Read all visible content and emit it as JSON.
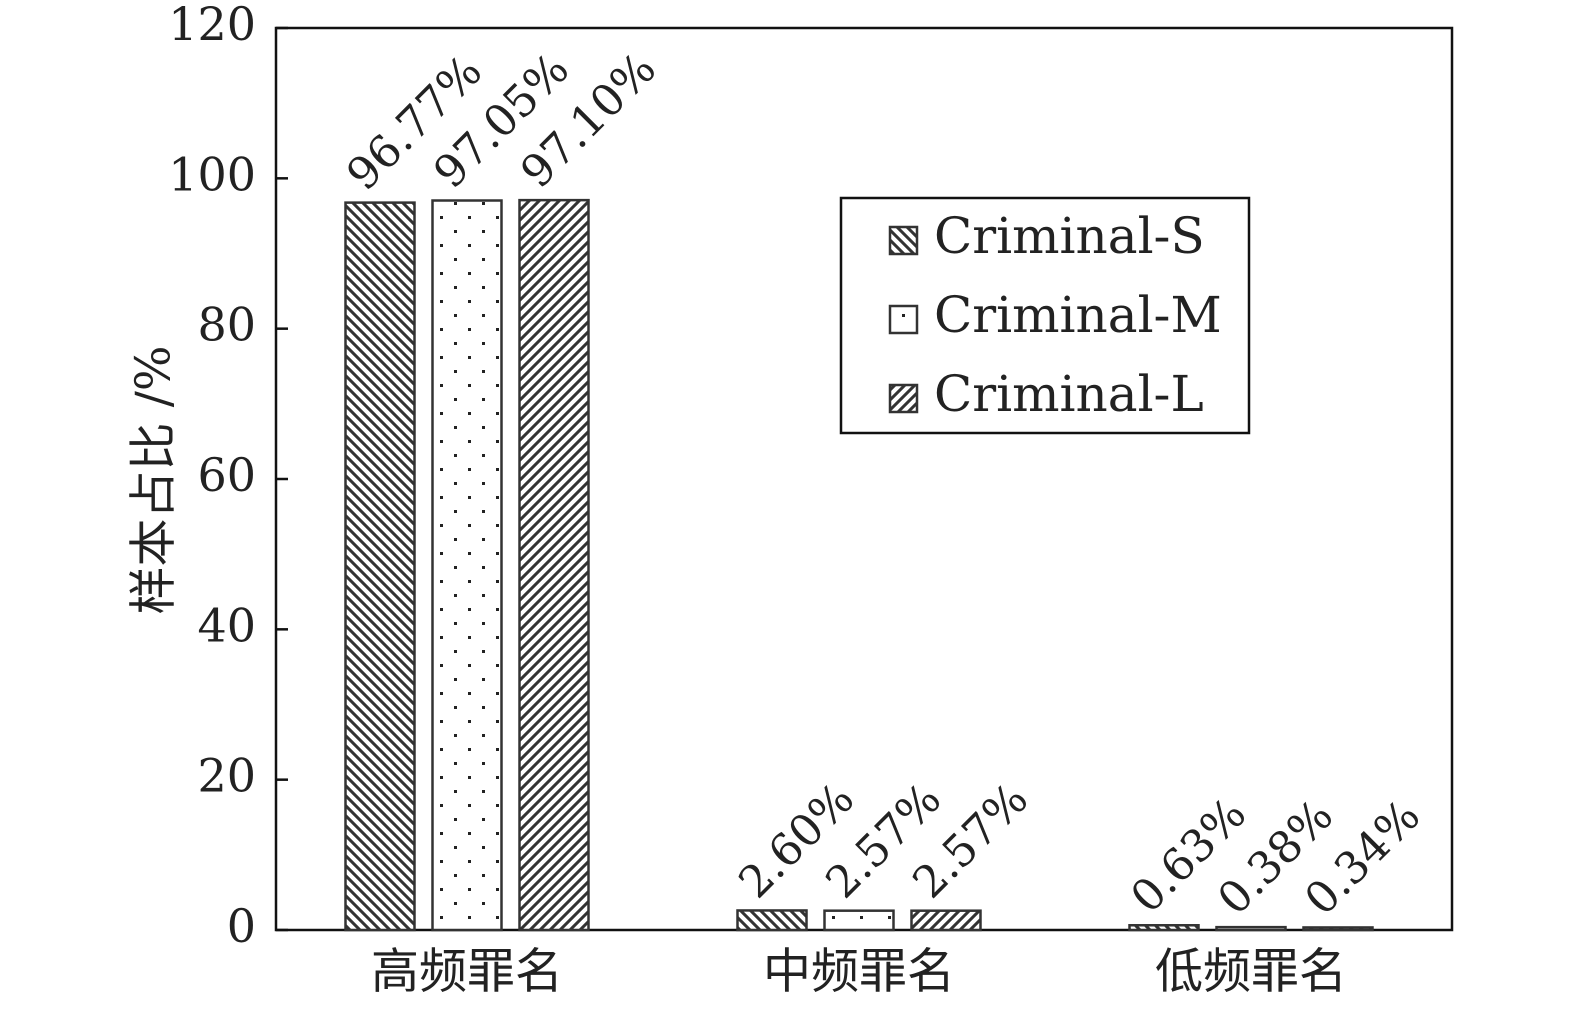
{
  "chart_data": {
    "type": "bar",
    "ylabel": "样本占比 /%",
    "ylim": [
      0,
      120
    ],
    "yticks": [
      0,
      20,
      40,
      60,
      80,
      100,
      120
    ],
    "categories": [
      "高频罪名",
      "中频罪名",
      "低频罪名"
    ],
    "series": [
      {
        "name": "Criminal-S",
        "pattern": "backslash",
        "values": [
          96.77,
          2.6,
          0.63
        ],
        "labels": [
          "96.77%",
          "2.60%",
          "0.63%"
        ]
      },
      {
        "name": "Criminal-M",
        "pattern": "dots",
        "values": [
          97.05,
          2.57,
          0.38
        ],
        "labels": [
          "97.05%",
          "2.57%",
          "0.38%"
        ]
      },
      {
        "name": "Criminal-L",
        "pattern": "slash",
        "values": [
          97.1,
          2.57,
          0.34
        ],
        "labels": [
          "97.10%",
          "2.57%",
          "0.34%"
        ]
      }
    ],
    "legend_position": "top-right",
    "grid": false
  }
}
